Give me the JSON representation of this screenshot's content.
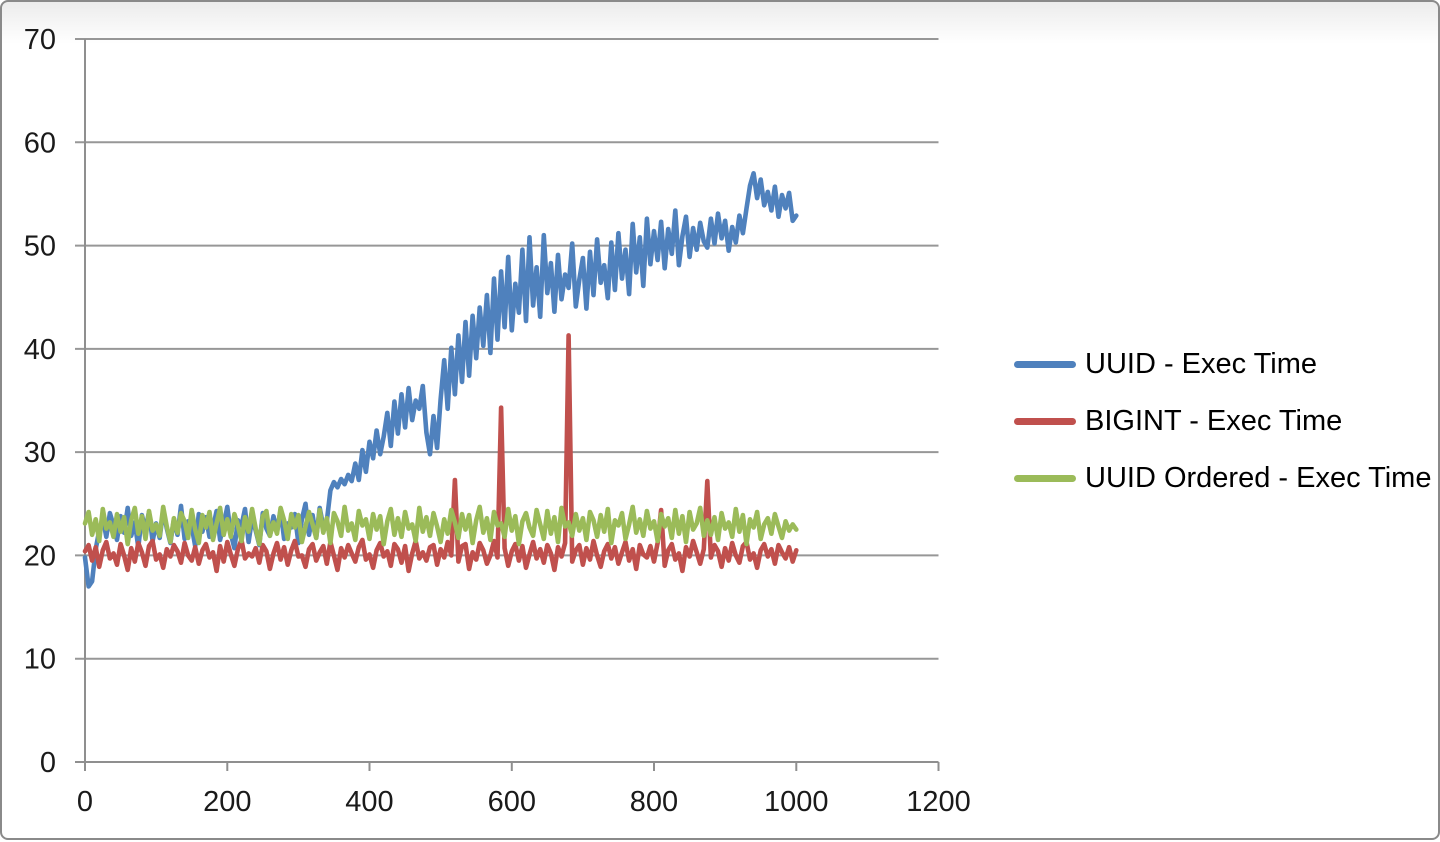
{
  "chart_data": {
    "type": "line",
    "title": "",
    "xlabel": "",
    "ylabel": "",
    "xlim": [
      0,
      1200
    ],
    "ylim": [
      0,
      70
    ],
    "xticks": [
      0,
      200,
      400,
      600,
      800,
      1000,
      1200
    ],
    "yticks": [
      0,
      10,
      20,
      30,
      40,
      50,
      60,
      70
    ],
    "grid": "horizontal",
    "legend_position": "right",
    "x_start": 0,
    "x_step": 5,
    "colors": {
      "gridline": "#979797",
      "axis": "#8f8f8f",
      "text": "#1a1a1a",
      "frame_border": "#8a8a8a",
      "background": "#ffffff"
    },
    "series": [
      {
        "name": "UUID - Exec Time",
        "color": "#4F81BD",
        "values": [
          19.8,
          17.0,
          17.5,
          20.6,
          22.4,
          23.6,
          21.8,
          24.1,
          22.9,
          21.5,
          23.8,
          22.2,
          24.6,
          21.9,
          23.2,
          20.8,
          23.9,
          22.5,
          24.2,
          21.4,
          23.1,
          21.7,
          24.4,
          22.6,
          21.2,
          23.5,
          22.0,
          24.8,
          21.6,
          23.3,
          22.8,
          20.9,
          24.0,
          22.3,
          23.7,
          21.8,
          22.7,
          24.3,
          21.5,
          23.0,
          24.7,
          22.1,
          20.7,
          23.4,
          22.9,
          24.5,
          21.3,
          23.6,
          22.4,
          21.0,
          24.1,
          22.6,
          21.9,
          23.8,
          22.3,
          24.4,
          21.6,
          23.1,
          22.7,
          24.0,
          21.2,
          23.5,
          25.0,
          22.0,
          23.9,
          21.7,
          24.6,
          22.8,
          23.3,
          26.3,
          27.1,
          26.6,
          27.4,
          26.9,
          27.8,
          27.2,
          28.9,
          27.3,
          30.2,
          28.1,
          31.0,
          29.4,
          32.1,
          29.8,
          31.5,
          33.8,
          30.6,
          34.9,
          31.8,
          35.6,
          32.4,
          36.2,
          33.1,
          35.0,
          34.2,
          36.4,
          31.9,
          29.8,
          33.5,
          30.4,
          35.1,
          38.9,
          34.2,
          40.1,
          35.6,
          41.3,
          36.8,
          42.6,
          37.4,
          43.2,
          39.1,
          44.0,
          40.3,
          45.2,
          39.6,
          46.8,
          40.9,
          47.5,
          42.1,
          48.9,
          41.8,
          46.3,
          43.5,
          49.6,
          42.7,
          50.8,
          44.2,
          47.9,
          43.1,
          51.0,
          45.4,
          48.3,
          43.6,
          49.1,
          44.8,
          47.2,
          45.9,
          50.2,
          44.1,
          46.7,
          48.8,
          43.9,
          49.4,
          45.2,
          50.6,
          46.4,
          48.1,
          44.9,
          50.3,
          45.7,
          51.2,
          46.8,
          49.6,
          45.3,
          52.1,
          47.4,
          50.8,
          46.1,
          52.6,
          48.2,
          51.4,
          48.6,
          52.3,
          47.8,
          51.6,
          49.2,
          53.4,
          48.1,
          50.9,
          52.8,
          48.9,
          51.7,
          49.6,
          52.2,
          50.4,
          49.8,
          52.6,
          50.2,
          53.1,
          50.7,
          52.4,
          49.5,
          51.8,
          50.3,
          52.9,
          51.2,
          53.6,
          55.8,
          57.0,
          54.6,
          56.4,
          53.9,
          55.2,
          53.4,
          55.7,
          52.8,
          54.9,
          53.6,
          55.1,
          52.4,
          52.9
        ]
      },
      {
        "name": "BIGINT - Exec Time",
        "color": "#C0504D",
        "values": [
          20.4,
          21.0,
          19.5,
          20.8,
          18.9,
          20.5,
          21.3,
          19.7,
          20.2,
          19.1,
          21.1,
          20.0,
          18.6,
          20.7,
          19.4,
          21.2,
          20.3,
          19.0,
          20.9,
          21.4,
          19.6,
          20.1,
          18.8,
          20.6,
          19.9,
          21.0,
          20.4,
          19.3,
          21.2,
          20.0,
          19.5,
          20.8,
          19.2,
          20.5,
          21.1,
          19.8,
          20.3,
          18.5,
          20.9,
          19.4,
          21.3,
          20.1,
          19.0,
          20.6,
          21.5,
          19.7,
          20.2,
          19.9,
          20.7,
          19.3,
          21.0,
          20.4,
          18.7,
          20.2,
          21.2,
          19.6,
          20.8,
          19.1,
          20.5,
          21.4,
          19.9,
          20.0,
          18.9,
          20.6,
          21.1,
          19.5,
          20.3,
          20.9,
          19.2,
          21.3,
          20.0,
          18.6,
          20.7,
          19.8,
          21.0,
          20.2,
          19.4,
          20.8,
          21.5,
          19.6,
          20.1,
          18.8,
          20.5,
          21.2,
          19.9,
          20.4,
          19.0,
          21.1,
          20.6,
          19.3,
          20.9,
          18.5,
          20.2,
          21.4,
          19.7,
          20.3,
          19.5,
          20.8,
          21.0,
          19.1,
          20.6,
          19.8,
          21.3,
          20.0,
          27.3,
          19.4,
          20.9,
          21.1,
          18.7,
          20.3,
          19.6,
          21.2,
          20.5,
          19.2,
          20.0,
          21.4,
          19.8,
          34.3,
          20.7,
          19.0,
          20.4,
          21.1,
          19.5,
          20.9,
          18.8,
          20.1,
          21.3,
          19.7,
          20.6,
          19.3,
          21.0,
          20.2,
          18.6,
          20.8,
          19.9,
          21.2,
          41.3,
          19.4,
          20.5,
          21.0,
          19.1,
          20.7,
          19.6,
          21.4,
          20.0,
          18.9,
          20.4,
          21.1,
          19.7,
          20.8,
          19.2,
          20.3,
          21.3,
          19.5,
          20.6,
          18.7,
          21.0,
          20.1,
          19.8,
          20.9,
          19.4,
          21.2,
          24.4,
          19.0,
          20.5,
          21.1,
          19.6,
          20.2,
          18.5,
          20.8,
          19.9,
          21.4,
          20.3,
          19.2,
          20.6,
          27.2,
          19.8,
          21.0,
          20.4,
          18.9,
          20.7,
          19.5,
          21.2,
          20.0,
          19.3,
          20.9,
          21.3,
          19.6,
          20.2,
          18.8,
          20.5,
          21.1,
          19.9,
          20.6,
          19.2,
          21.0,
          20.3,
          19.7,
          20.8,
          19.4,
          20.5
        ]
      },
      {
        "name": "UUID Ordered - Exec Time",
        "color": "#9BBB59",
        "values": [
          23.1,
          24.2,
          22.0,
          23.5,
          21.4,
          24.5,
          22.6,
          23.2,
          21.8,
          24.0,
          22.3,
          23.7,
          21.1,
          23.4,
          24.6,
          22.1,
          23.8,
          21.6,
          24.3,
          22.4,
          23.0,
          21.9,
          24.7,
          22.8,
          21.3,
          23.6,
          22.2,
          24.1,
          23.3,
          21.7,
          24.4,
          22.5,
          21.2,
          23.9,
          22.7,
          24.2,
          21.5,
          23.1,
          24.6,
          22.0,
          23.5,
          21.8,
          24.0,
          22.9,
          21.4,
          23.7,
          22.3,
          24.5,
          22.6,
          21.1,
          23.8,
          24.3,
          21.9,
          23.2,
          22.1,
          24.6,
          23.4,
          21.6,
          24.0,
          22.7,
          23.9,
          21.3,
          22.8,
          24.2,
          23.0,
          21.7,
          24.4,
          22.2,
          23.6,
          21.2,
          24.1,
          23.3,
          21.9,
          24.7,
          22.4,
          23.1,
          21.5,
          24.3,
          22.9,
          23.5,
          21.6,
          24.0,
          22.5,
          23.8,
          21.1,
          23.3,
          24.5,
          22.0,
          23.6,
          21.8,
          24.2,
          22.6,
          23.0,
          21.4,
          24.6,
          22.3,
          23.7,
          21.9,
          24.1,
          22.8,
          21.3,
          23.5,
          22.1,
          24.4,
          23.2,
          21.7,
          24.0,
          22.5,
          23.9,
          21.2,
          23.4,
          24.7,
          22.2,
          23.6,
          21.5,
          24.2,
          22.9,
          23.1,
          21.8,
          24.5,
          22.4,
          23.8,
          21.1,
          23.3,
          24.1,
          22.7,
          21.9,
          24.4,
          23.0,
          21.6,
          24.3,
          22.1,
          23.7,
          21.3,
          24.6,
          22.8,
          23.2,
          21.9,
          24.0,
          22.4,
          23.6,
          21.5,
          24.2,
          23.4,
          21.8,
          23.9,
          22.3,
          24.5,
          21.2,
          23.4,
          22.9,
          24.1,
          21.6,
          23.0,
          24.7,
          22.2,
          23.5,
          21.9,
          24.3,
          22.6,
          23.3,
          21.4,
          24.0,
          22.8,
          23.6,
          21.7,
          24.4,
          22.1,
          23.8,
          21.3,
          24.2,
          22.5,
          23.1,
          24.6,
          21.9,
          23.4,
          22.0,
          23.7,
          21.5,
          24.1,
          22.6,
          23.2,
          21.8,
          24.5,
          22.3,
          23.9,
          21.1,
          23.5,
          22.7,
          24.2,
          21.6,
          23.0,
          23.6,
          22.1,
          24.0,
          22.8,
          21.7,
          23.3,
          22.4,
          23.0,
          22.5
        ]
      }
    ]
  }
}
